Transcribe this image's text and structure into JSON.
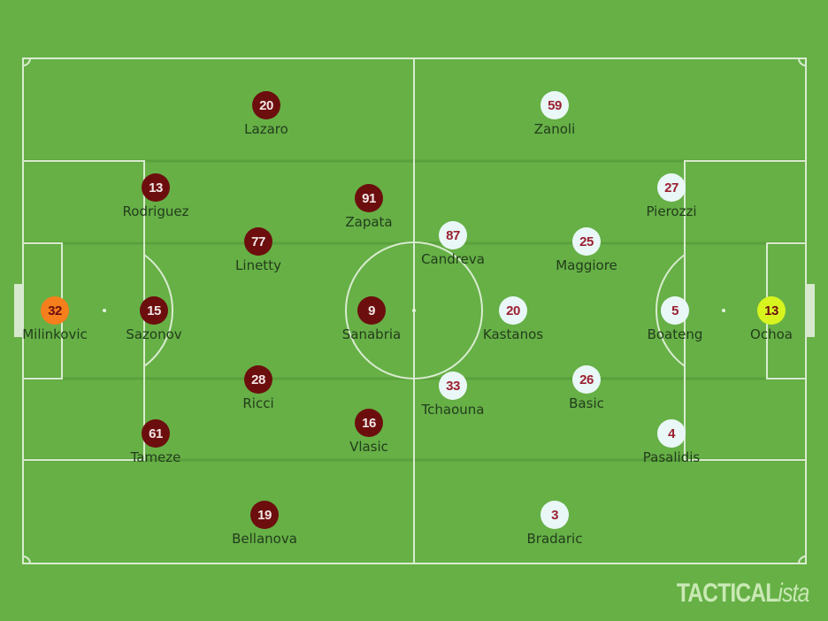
{
  "colors": {
    "pitch": "#66b046",
    "home": "#6c0e0e",
    "away": "#e9f7f7",
    "home_gk": "#f57f1c",
    "away_gk": "#d8f41f"
  },
  "brand": {
    "main": "TACTICAL",
    "suffix": "ista"
  },
  "home": [
    {
      "number": "32",
      "name": "Milinkovic",
      "gk": true
    },
    {
      "number": "15",
      "name": "Sazonov"
    },
    {
      "number": "13",
      "name": "Rodriguez"
    },
    {
      "number": "61",
      "name": "Tameze"
    },
    {
      "number": "20",
      "name": "Lazaro"
    },
    {
      "number": "77",
      "name": "Linetty"
    },
    {
      "number": "28",
      "name": "Ricci"
    },
    {
      "number": "19",
      "name": "Bellanova"
    },
    {
      "number": "91",
      "name": "Zapata"
    },
    {
      "number": "9",
      "name": "Sanabria"
    },
    {
      "number": "16",
      "name": "Vlasic"
    }
  ],
  "away": [
    {
      "number": "13",
      "name": "Ochoa",
      "gk": true
    },
    {
      "number": "5",
      "name": "Boateng"
    },
    {
      "number": "27",
      "name": "Pierozzi"
    },
    {
      "number": "4",
      "name": "Pasalidis"
    },
    {
      "number": "59",
      "name": "Zanoli"
    },
    {
      "number": "25",
      "name": "Maggiore"
    },
    {
      "number": "26",
      "name": "Basic"
    },
    {
      "number": "3",
      "name": "Bradaric"
    },
    {
      "number": "87",
      "name": "Candreva"
    },
    {
      "number": "20",
      "name": "Kastanos"
    },
    {
      "number": "33",
      "name": "Tchaouna"
    }
  ]
}
